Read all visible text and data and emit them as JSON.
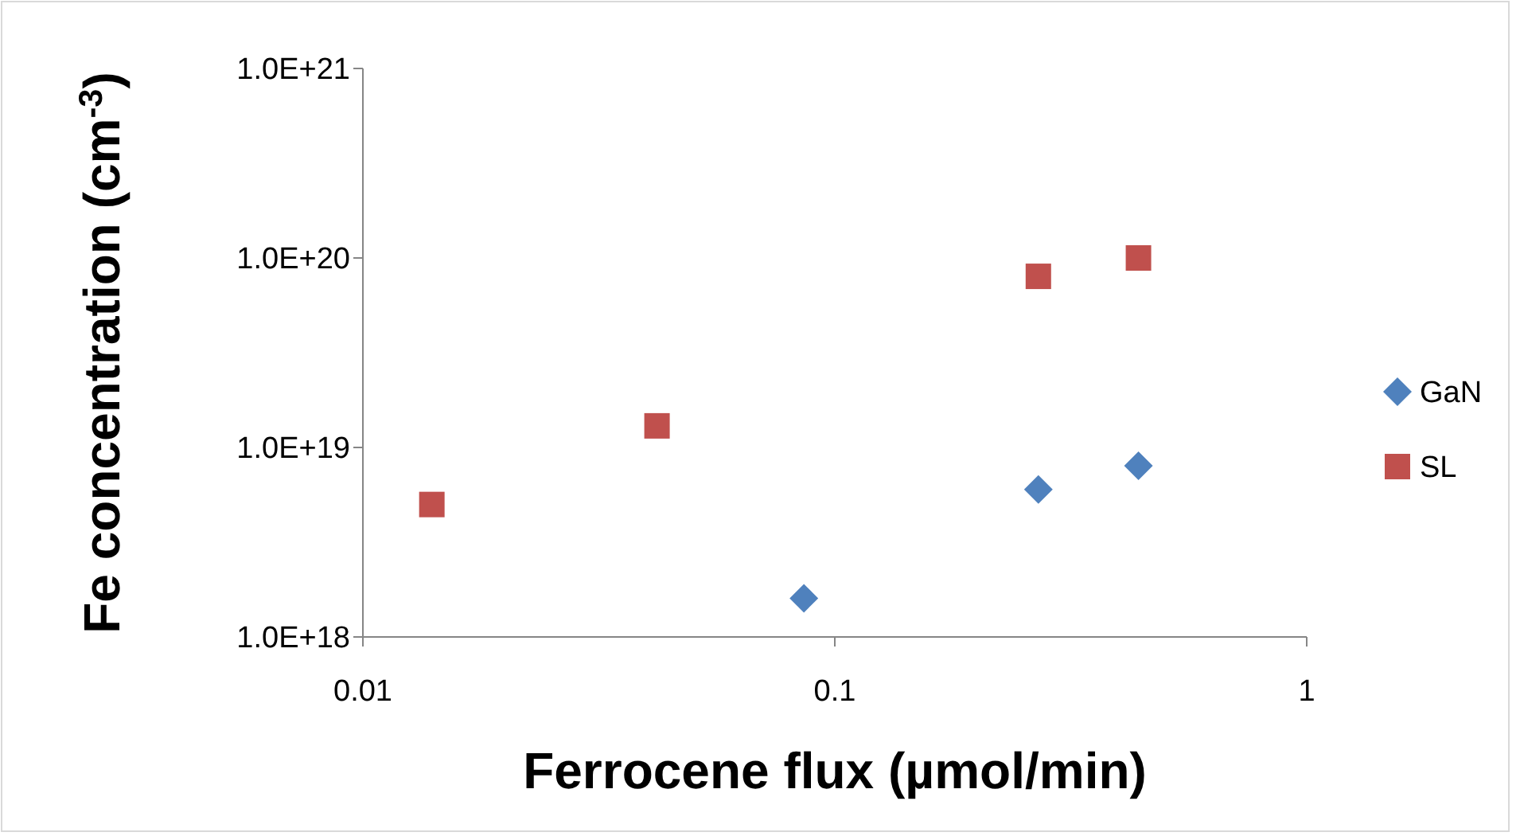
{
  "chart_data": {
    "type": "scatter",
    "xlabel": "Ferrocene flux (µmol/min)",
    "ylabel": "Fe concentration (cm$^{-3}$)",
    "log": "xy",
    "grid": false,
    "legend": "right",
    "xlim": [
      0.01,
      1
    ],
    "xticks": [
      0.01,
      0.1,
      1
    ],
    "ylim": [
      1e+18,
      1e+21
    ],
    "yticks": [
      {
        "value": 1e+18,
        "label": "1.0E+18"
      },
      {
        "value": 1e+19,
        "label": "1.0E+19"
      },
      {
        "value": 1e+20,
        "label": "1.0E+20"
      },
      {
        "value": 1e+21,
        "label": "1.0E+21"
      }
    ],
    "series": [
      {
        "name": "GaN",
        "color": "#4f81bd",
        "marker": "diamond",
        "x": [
          0.086,
          0.27,
          0.44
        ],
        "values": [
          1.6e+18,
          6e+18,
          8e+18
        ]
      },
      {
        "name": "SL",
        "color": "#c0504d",
        "marker": "square",
        "x": [
          0.014,
          0.042,
          0.27,
          0.44
        ],
        "values": [
          5e+18,
          1.3e+19,
          8e+19,
          1e+20
        ]
      }
    ]
  }
}
